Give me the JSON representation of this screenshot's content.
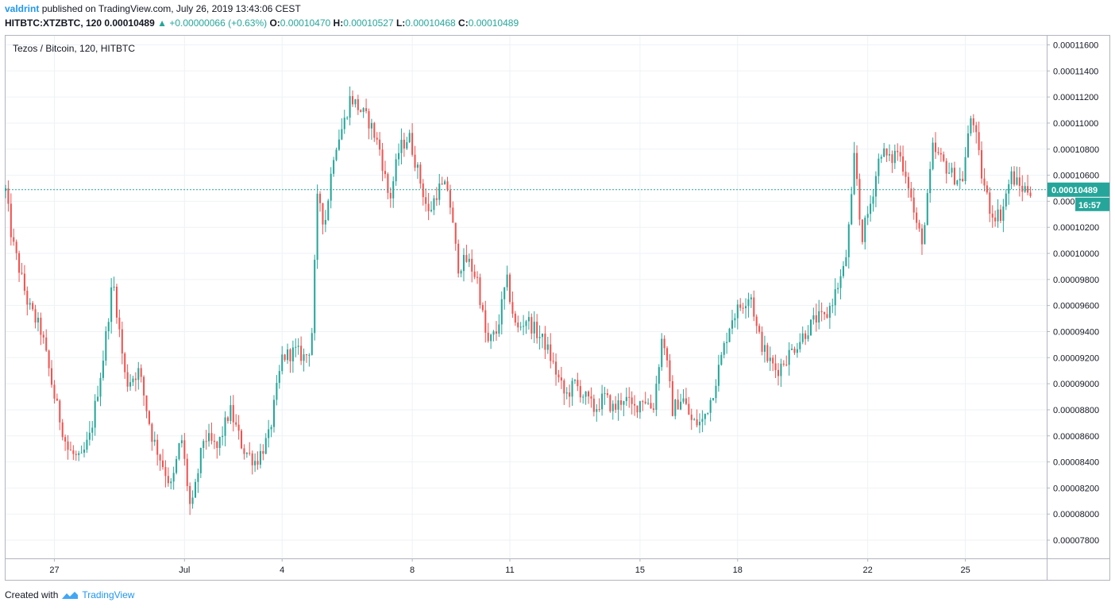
{
  "header": {
    "author": "valdrint",
    "published_text": "published on TradingView.com, July 26, 2019 13:43:06 CEST",
    "symbol_line": "HITBTC:XTZBTC, 120",
    "last": "0.00010489",
    "change": "+0.00000066 (+0.63%)",
    "open_label": "O:",
    "open": "0.00010470",
    "high_label": "H:",
    "high": "0.00010527",
    "low_label": "L:",
    "low": "0.00010468",
    "close_label": "C:",
    "close": "0.00010489"
  },
  "footer": {
    "created_with": "Created with",
    "brand": "TradingView"
  },
  "colors": {
    "up": "#26a69a",
    "down": "#ef5350",
    "grid": "#eef2f6",
    "axis_text": "#131722",
    "price_line": "#26a69a"
  },
  "chart_data": {
    "type": "candlestick",
    "title": "Tezos / Bitcoin, 120, HITBTC",
    "current_price": "0.00010489",
    "countdown": "16:57",
    "ylim": [
      7.66e-05,
      0.0001167
    ],
    "y_ticks": [
      "0.00011600",
      "0.00011400",
      "0.00011200",
      "0.00011000",
      "0.00010800",
      "0.00010600",
      "0.00010400",
      "0.00010200",
      "0.00010000",
      "0.00009800",
      "0.00009600",
      "0.00009400",
      "0.00009200",
      "0.00009000",
      "0.00008800",
      "0.00008600",
      "0.00008400",
      "0.00008200",
      "0.00008000",
      "0.00007800"
    ],
    "x_ticks": [
      "27",
      "Jul",
      "4",
      "8",
      "11",
      "15",
      "18",
      "22",
      "25"
    ],
    "x_tick_days": [
      1,
      5,
      8,
      12,
      15,
      19,
      22,
      26,
      29
    ],
    "x_range_days": [
      -0.5,
      31.5
    ],
    "path_points": [
      [
        -0.5,
        10.48
      ],
      [
        -0.3,
        10.1
      ],
      [
        0.2,
        9.6
      ],
      [
        0.6,
        9.4
      ],
      [
        1.0,
        8.9
      ],
      [
        1.4,
        8.5
      ],
      [
        1.8,
        8.4
      ],
      [
        2.1,
        8.6
      ],
      [
        2.5,
        9.2
      ],
      [
        2.8,
        9.8
      ],
      [
        3.2,
        9.0
      ],
      [
        3.6,
        9.1
      ],
      [
        4.0,
        8.6
      ],
      [
        4.3,
        8.4
      ],
      [
        4.6,
        8.2
      ],
      [
        4.9,
        8.6
      ],
      [
        5.2,
        8.0
      ],
      [
        5.6,
        8.6
      ],
      [
        6.0,
        8.5
      ],
      [
        6.4,
        8.8
      ],
      [
        6.8,
        8.5
      ],
      [
        7.2,
        8.4
      ],
      [
        7.6,
        8.6
      ],
      [
        8.0,
        9.2
      ],
      [
        8.4,
        9.25
      ],
      [
        8.7,
        9.2
      ],
      [
        8.9,
        9.3
      ],
      [
        9.1,
        10.5
      ],
      [
        9.3,
        10.2
      ],
      [
        9.6,
        10.8
      ],
      [
        9.9,
        11.0
      ],
      [
        10.1,
        11.2
      ],
      [
        10.4,
        11.1
      ],
      [
        10.7,
        11.0
      ],
      [
        11.0,
        10.8
      ],
      [
        11.3,
        10.4
      ],
      [
        11.6,
        10.8
      ],
      [
        11.9,
        10.9
      ],
      [
        12.2,
        10.6
      ],
      [
        12.5,
        10.3
      ],
      [
        12.8,
        10.5
      ],
      [
        13.1,
        10.5
      ],
      [
        13.4,
        9.9
      ],
      [
        13.7,
        9.95
      ],
      [
        14.0,
        9.8
      ],
      [
        14.3,
        9.3
      ],
      [
        14.6,
        9.4
      ],
      [
        14.9,
        9.8
      ],
      [
        15.2,
        9.4
      ],
      [
        15.5,
        9.5
      ],
      [
        15.8,
        9.4
      ],
      [
        16.1,
        9.3
      ],
      [
        16.4,
        9.1
      ],
      [
        16.7,
        8.9
      ],
      [
        17.0,
        9.0
      ],
      [
        17.3,
        8.9
      ],
      [
        17.6,
        8.8
      ],
      [
        17.9,
        8.9
      ],
      [
        18.2,
        8.8
      ],
      [
        18.5,
        8.9
      ],
      [
        18.8,
        8.8
      ],
      [
        19.1,
        8.9
      ],
      [
        19.4,
        8.8
      ],
      [
        19.7,
        9.4
      ],
      [
        20.0,
        8.8
      ],
      [
        20.3,
        8.9
      ],
      [
        20.6,
        8.7
      ],
      [
        20.9,
        8.7
      ],
      [
        21.2,
        8.9
      ],
      [
        21.5,
        9.2
      ],
      [
        21.8,
        9.5
      ],
      [
        22.1,
        9.6
      ],
      [
        22.4,
        9.7
      ],
      [
        22.6,
        9.4
      ],
      [
        22.9,
        9.2
      ],
      [
        23.2,
        9.1
      ],
      [
        23.5,
        9.2
      ],
      [
        23.8,
        9.3
      ],
      [
        24.1,
        9.4
      ],
      [
        24.4,
        9.5
      ],
      [
        24.7,
        9.5
      ],
      [
        25.0,
        9.7
      ],
      [
        25.3,
        9.9
      ],
      [
        25.5,
        10.4
      ],
      [
        25.6,
        10.8
      ],
      [
        25.8,
        10.1
      ],
      [
        26.1,
        10.4
      ],
      [
        26.4,
        10.8
      ],
      [
        26.7,
        10.7
      ],
      [
        26.9,
        10.8
      ],
      [
        27.2,
        10.6
      ],
      [
        27.5,
        10.2
      ],
      [
        27.7,
        10.1
      ],
      [
        28.0,
        10.8
      ],
      [
        28.3,
        10.7
      ],
      [
        28.6,
        10.6
      ],
      [
        28.9,
        10.55
      ],
      [
        29.2,
        11.1
      ],
      [
        29.5,
        10.6
      ],
      [
        29.8,
        10.3
      ],
      [
        30.1,
        10.3
      ],
      [
        30.4,
        10.6
      ],
      [
        30.7,
        10.5
      ],
      [
        31.0,
        10.49
      ]
    ]
  }
}
